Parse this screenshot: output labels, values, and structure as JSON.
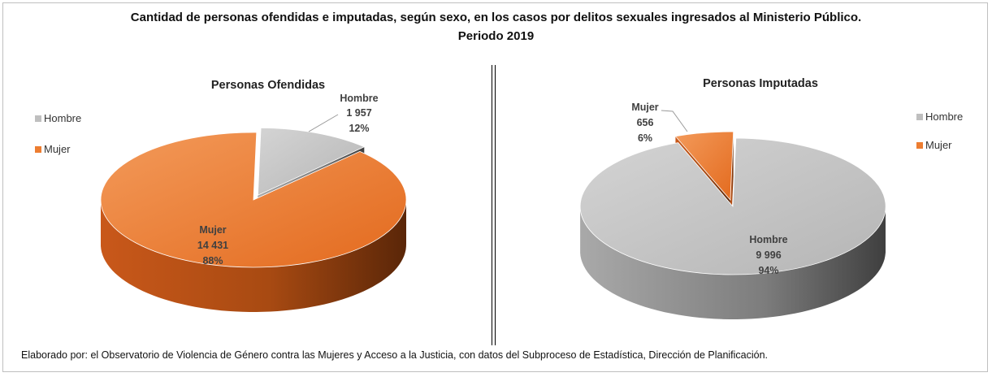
{
  "title": {
    "line1": "Cantidad de personas ofendidas e imputadas, según sexo, en los casos por delitos sexuales ingresados al Ministerio Público.",
    "line2": "Periodo 2019"
  },
  "source_note": "Elaborado por:  el Observatorio de Violencia de Género contra las Mujeres y Acceso a la Justicia, con datos del Subproceso de Estadística, Dirección de Planificación.",
  "chart_data": [
    {
      "type": "pie",
      "title": "Personas Ofendidas",
      "legend": [
        "Hombre",
        "Mujer"
      ],
      "legend_position": "left",
      "categories": [
        "Hombre",
        "Mujer"
      ],
      "values": [
        1957,
        14431
      ],
      "value_labels": [
        "1 957",
        "14 431"
      ],
      "percent_labels": [
        "12%",
        "88%"
      ],
      "colors": {
        "Hombre": "#bfbfbf",
        "Mujer": "#ed7d31"
      }
    },
    {
      "type": "pie",
      "title": "Personas Imputadas",
      "legend": [
        "Hombre",
        "Mujer"
      ],
      "legend_position": "right",
      "categories": [
        "Hombre",
        "Mujer"
      ],
      "values": [
        9996,
        656
      ],
      "value_labels": [
        "9 996",
        "656"
      ],
      "percent_labels": [
        "94%",
        "6%"
      ],
      "colors": {
        "Hombre": "#bfbfbf",
        "Mujer": "#ed7d31"
      }
    }
  ]
}
